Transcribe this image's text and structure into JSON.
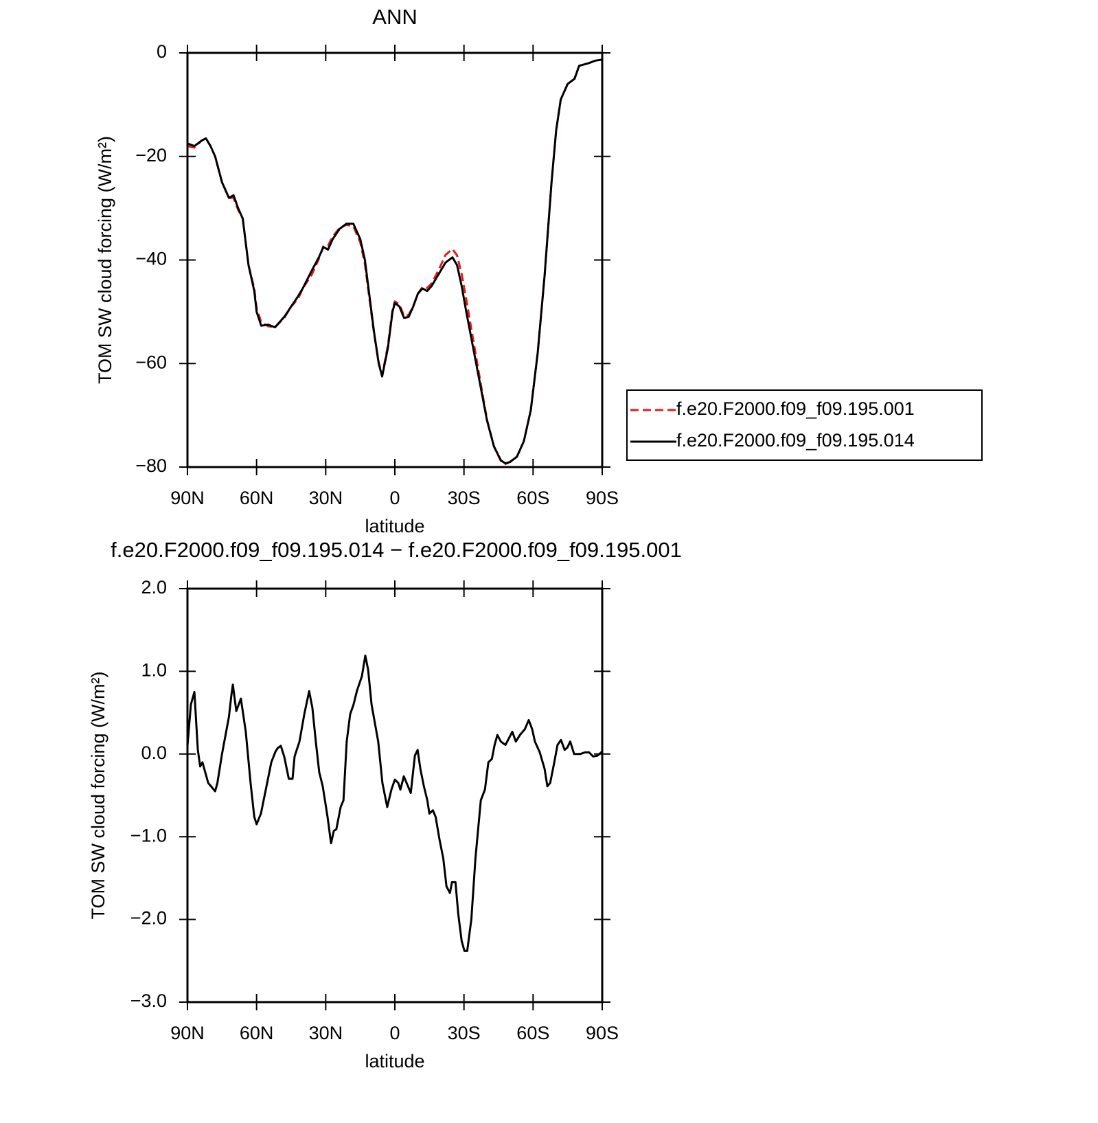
{
  "chart_data": [
    {
      "type": "line",
      "title": "ANN",
      "x_label": "latitude",
      "y_label": "TOM SW cloud forcing (W/m²)",
      "x": [
        90,
        87,
        84,
        82,
        80,
        78,
        75,
        72,
        70,
        68,
        66,
        63.5,
        61,
        60,
        58,
        55,
        52,
        48,
        45,
        42,
        40,
        36,
        33,
        31,
        29,
        27,
        24,
        21,
        18,
        15,
        13,
        11,
        9,
        7,
        5.5,
        3,
        1,
        0,
        -2,
        -4,
        -6,
        -8,
        -10,
        -12,
        -14,
        -16,
        -18,
        -20,
        -22,
        -25,
        -27,
        -29,
        -31,
        -34,
        -37,
        -40,
        -43,
        -46,
        -48,
        -50,
        -53,
        -56,
        -59,
        -62,
        -65,
        -68,
        -70,
        -72,
        -75,
        -78,
        -80,
        -84,
        -87,
        -90
      ],
      "series": [
        {
          "name": "f.e20.F2000.f09_f09.195.001",
          "color": "#e41a1c",
          "linestyle": "dashed",
          "values": [
            -18,
            -18.3,
            -17,
            -16.5,
            -18,
            -20,
            -25,
            -28,
            -28,
            -30.3,
            -32,
            -41,
            -45.5,
            -49.3,
            -52,
            -52.8,
            -53,
            -51.2,
            -49,
            -47.5,
            -45.5,
            -42.8,
            -39.8,
            -37.3,
            -37.2,
            -35.5,
            -33.8,
            -33.2,
            -33.5,
            -36.6,
            -40.8,
            -47.6,
            -54.3,
            -59.8,
            -62.3,
            -56.5,
            -49.6,
            -48,
            -48.6,
            -50.8,
            -50.6,
            -48.9,
            -46.5,
            -45.2,
            -45.4,
            -44.5,
            -42.8,
            -41,
            -39,
            -37.9,
            -39.1,
            -42.7,
            -47.6,
            -55.4,
            -63.2,
            -70.8,
            -76,
            -78.8,
            -79.4,
            -79,
            -78,
            -75,
            -69,
            -58,
            -43,
            -25,
            -15,
            -9,
            -6,
            -5,
            -2.5,
            -2,
            -1.5,
            -1.3
          ]
        },
        {
          "name": "f.e20.F2000.f09_f09.195.014",
          "color": "#000000",
          "linestyle": "solid",
          "values": [
            -17.5,
            -18,
            -17,
            -16.5,
            -18,
            -20,
            -25,
            -28,
            -27.5,
            -30,
            -32,
            -41,
            -46,
            -50,
            -52.7,
            -52.5,
            -53,
            -51,
            -49,
            -47,
            -45.5,
            -42,
            -39.5,
            -37.5,
            -38,
            -36,
            -34,
            -33,
            -33,
            -36,
            -40,
            -47,
            -54,
            -60,
            -62.5,
            -57,
            -50,
            -48.3,
            -49,
            -51.2,
            -51,
            -49,
            -46.5,
            -45.5,
            -46,
            -45,
            -43.5,
            -42,
            -40.5,
            -39.5,
            -41,
            -45,
            -50,
            -57,
            -64,
            -71,
            -76,
            -78.7,
            -79.3,
            -79,
            -78,
            -75,
            -69,
            -58,
            -43,
            -25,
            -15,
            -9,
            -6,
            -5,
            -2.5,
            -2,
            -1.5,
            -1.3
          ]
        }
      ],
      "xlim": [
        90,
        -90
      ],
      "xticks": [
        {
          "value": 90,
          "label": "90N"
        },
        {
          "value": 60,
          "label": "60N"
        },
        {
          "value": 30,
          "label": "30N"
        },
        0,
        {
          "value": -30,
          "label": "30S"
        },
        {
          "value": -60,
          "label": "60S"
        },
        {
          "value": -90,
          "label": "90S"
        }
      ],
      "ylim": [
        -80,
        0
      ],
      "yticks": [
        {
          "value": -80,
          "label": "−80"
        },
        {
          "value": -60,
          "label": "−60"
        },
        {
          "value": -40,
          "label": "−40"
        },
        {
          "value": -20,
          "label": "−20"
        },
        0
      ],
      "legend": "right",
      "grid": false
    },
    {
      "type": "line",
      "title": "f.e20.F2000.f09_f09.195.014 − f.e20.F2000.f09_f09.195.001",
      "x_label": "latitude",
      "y_label": "TOM SW cloud forcing (W/m²)",
      "x": [
        90,
        88.5,
        87,
        85.5,
        84.5,
        83.5,
        81,
        78,
        77,
        75,
        72,
        71,
        70.3,
        68.8,
        66.8,
        64.7,
        62.6,
        61,
        60,
        58.1,
        56,
        53.6,
        51.8,
        50.9,
        49.5,
        48,
        46,
        44.4,
        43.5,
        41.4,
        39.3,
        37.2,
        35.8,
        34.3,
        32.8,
        31.3,
        29.2,
        27.7,
        26.5,
        25.4,
        23.5,
        22.3,
        20.9,
        19.4,
        17.9,
        16.4,
        14.3,
        12.8,
        11.6,
        10.1,
        8,
        7.2,
        5.4,
        3.3,
        1.5,
        0,
        -1.5,
        -2.4,
        -3.9,
        -5.1,
        -6.9,
        -8.7,
        -9.9,
        -11.1,
        -12.6,
        -14.1,
        -15,
        -16.5,
        -17.7,
        -19.5,
        -21,
        -22.4,
        -23.9,
        -24.8,
        -26.3,
        -27.5,
        -29,
        -30.2,
        -31.4,
        -33.2,
        -35,
        -37.3,
        -39.1,
        -40.6,
        -42.1,
        -43.3,
        -44.5,
        -46,
        -48,
        -49.5,
        -51,
        -52.5,
        -54.3,
        -56.4,
        -58.1,
        -59.6,
        -60.8,
        -62.9,
        -65,
        -66.2,
        -67.4,
        -69.2,
        -70.6,
        -72.1,
        -73.7,
        -74.9,
        -76.1,
        -77.8,
        -80.5,
        -82.5,
        -84.3,
        -86.1,
        -87.9,
        -90
      ],
      "series": [
        {
          "name": "f.e20.F2000.f09_f09.195.014 − f.e20.F2000.f09_f09.195.001",
          "color": "#000000",
          "linestyle": "solid",
          "values": [
            0.1,
            0.6,
            0.75,
            0.05,
            -0.15,
            -0.1,
            -0.35,
            -0.45,
            -0.35,
            0,
            0.45,
            0.7,
            0.84,
            0.52,
            0.67,
            0.27,
            -0.35,
            -0.76,
            -0.85,
            -0.72,
            -0.43,
            -0.1,
            0.03,
            0.07,
            0.1,
            -0.03,
            -0.3,
            -0.3,
            -0.03,
            0.15,
            0.48,
            0.76,
            0.56,
            0.15,
            -0.22,
            -0.39,
            -0.76,
            -1.08,
            -0.93,
            -0.91,
            -0.64,
            -0.56,
            0.15,
            0.48,
            0.6,
            0.77,
            0.94,
            1.19,
            1.02,
            0.6,
            0.27,
            0.15,
            -0.35,
            -0.64,
            -0.43,
            -0.31,
            -0.35,
            -0.43,
            -0.27,
            -0.35,
            -0.47,
            -0.02,
            0.05,
            -0.18,
            -0.39,
            -0.56,
            -0.72,
            -0.68,
            -0.76,
            -1.05,
            -1.26,
            -1.6,
            -1.68,
            -1.55,
            -1.55,
            -1.93,
            -2.26,
            -2.38,
            -2.38,
            -2,
            -1.26,
            -0.56,
            -0.43,
            -0.1,
            -0.06,
            0.11,
            0.23,
            0.15,
            0.11,
            0.19,
            0.27,
            0.15,
            0.23,
            0.3,
            0.41,
            0.3,
            0.15,
            0.02,
            -0.18,
            -0.39,
            -0.35,
            -0.1,
            0.11,
            0.17,
            0.05,
            0.08,
            0.15,
            0,
            0,
            0.02,
            0.02,
            -0.03,
            -0.02,
            0.03
          ]
        }
      ],
      "xlim": [
        90,
        -90
      ],
      "xticks": [
        {
          "value": 90,
          "label": "90N"
        },
        {
          "value": 60,
          "label": "60N"
        },
        {
          "value": 30,
          "label": "30N"
        },
        0,
        {
          "value": -30,
          "label": "30S"
        },
        {
          "value": -60,
          "label": "60S"
        },
        {
          "value": -90,
          "label": "90S"
        }
      ],
      "ylim": [
        -3,
        2
      ],
      "yticks": [
        {
          "value": -3,
          "label": "−3.0"
        },
        {
          "value": -2,
          "label": "−2.0"
        },
        {
          "value": -1,
          "label": "−1.0"
        },
        {
          "value": 0,
          "label": "0.0"
        },
        {
          "value": 1,
          "label": "1.0"
        },
        {
          "value": 2,
          "label": "2.0"
        }
      ],
      "grid": false
    }
  ]
}
